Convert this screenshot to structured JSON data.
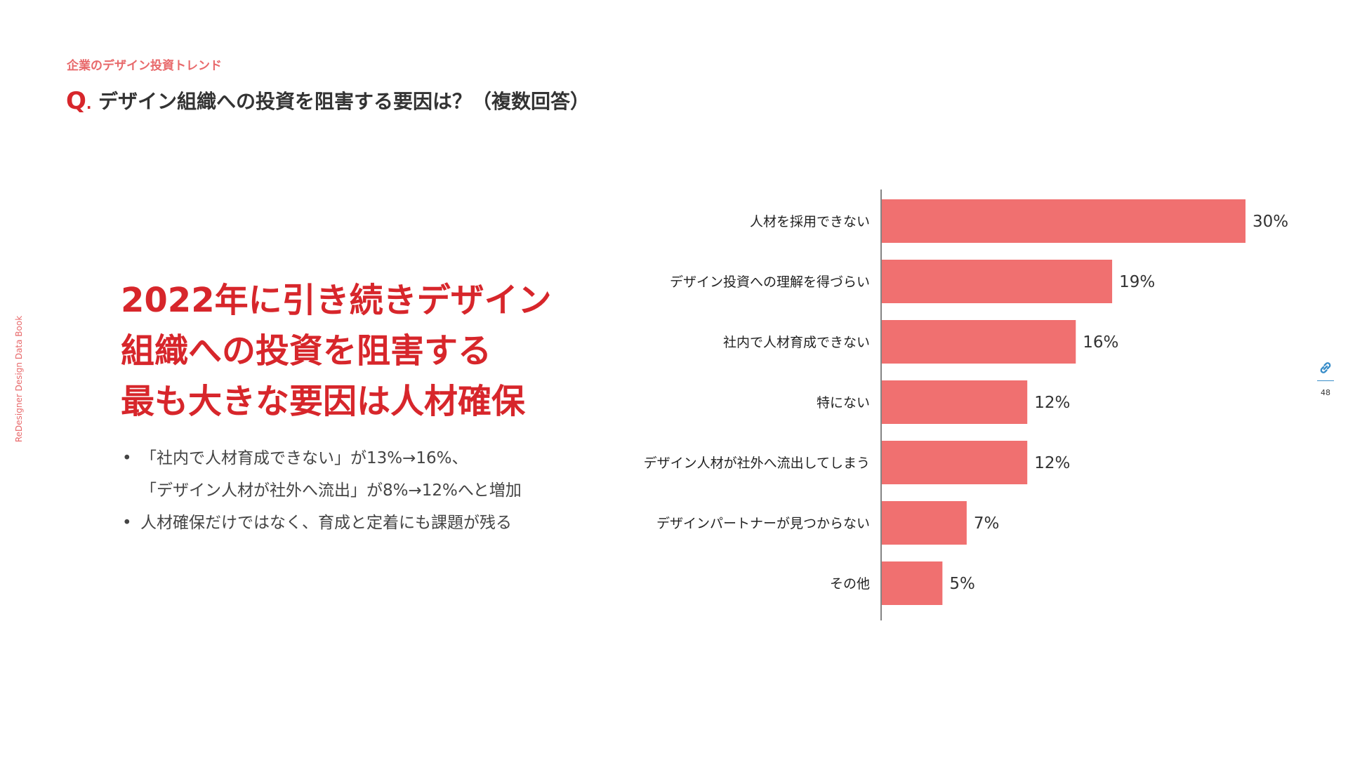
{
  "header": {
    "category": "企業のデザイン投資トレンド",
    "q_mark": "Q",
    "q_dot": ".",
    "question": "デザイン組織への投資を阻害する要因は？（複数回答）"
  },
  "side_label": "ReDesigner Design Data Book",
  "headline": {
    "lines": [
      "2022年に引き続きデザイン",
      "組織への投資を阻害する",
      "最も大きな要因は人材確保"
    ]
  },
  "notes": [
    {
      "bullet": "•",
      "line1": "「社内で人材育成できない」が13%→16%、",
      "line2": "「デザイン人材が社外へ流出」が8%→12%へと増加"
    },
    {
      "bullet": "•",
      "line1": "人材確保だけではなく、育成と定着にも課題が残る",
      "line2": ""
    }
  ],
  "chart_data": {
    "type": "bar",
    "orientation": "horizontal",
    "categories": [
      "人材を採用できない",
      "デザイン投資への理解を得づらい",
      "社内で人材育成できない",
      "特にない",
      "デザイン人材が社外へ流出してしまう",
      "デザインパートナーが見つからない",
      "その他"
    ],
    "values": [
      30,
      19,
      16,
      12,
      12,
      7,
      5
    ],
    "value_labels": [
      "30%",
      "19%",
      "16%",
      "12%",
      "12%",
      "7%",
      "5%"
    ],
    "unit": "%",
    "bar_color": "#f07070",
    "xlim": [
      0,
      30
    ],
    "grid": false,
    "legend": "none"
  },
  "page": {
    "number": "48",
    "icon": "link-icon",
    "accent_color": "#3a8ec9"
  }
}
